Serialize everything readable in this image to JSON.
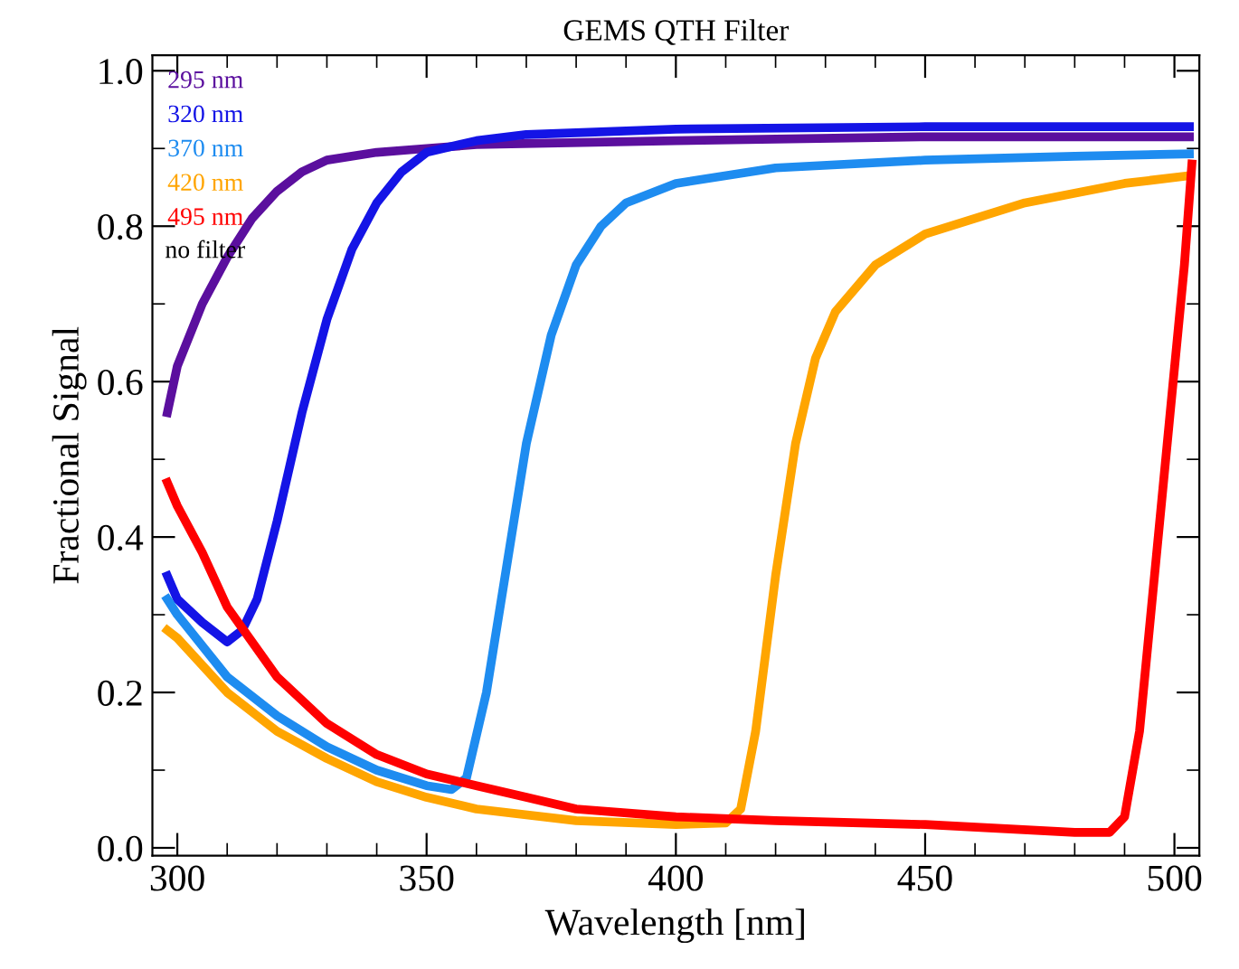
{
  "chart_data": {
    "type": "line",
    "title": "GEMS QTH Filter",
    "xlabel": "Wavelength [nm]",
    "ylabel": "Fractional Signal",
    "xlim": [
      295,
      505
    ],
    "ylim": [
      -0.01,
      1.02
    ],
    "xticks": [
      300,
      350,
      400,
      450,
      500
    ],
    "yticks": [
      {
        "value": 0,
        "label": "0.0"
      },
      0.2,
      0.4,
      0.6,
      0.8,
      {
        "value": 1,
        "label": "1.0"
      }
    ],
    "grid": false,
    "legend": "top left",
    "marker": "none",
    "line_style": "solid",
    "annotations": [
      "no filter"
    ],
    "series": [
      {
        "name": "295 nm",
        "color": "#5b0f9e",
        "x": [
          298,
          300,
          305,
          310,
          315,
          320,
          325,
          330,
          340,
          350,
          360,
          400,
          450,
          503
        ],
        "values": [
          0.56,
          0.62,
          0.7,
          0.76,
          0.81,
          0.845,
          0.87,
          0.885,
          0.895,
          0.9,
          0.905,
          0.91,
          0.915,
          0.915
        ]
      },
      {
        "name": "320 nm",
        "color": "#1414e6",
        "x": [
          298,
          300,
          305,
          310,
          313,
          316,
          320,
          325,
          330,
          335,
          340,
          345,
          350,
          360,
          370,
          400,
          450,
          503
        ],
        "values": [
          0.35,
          0.32,
          0.29,
          0.265,
          0.28,
          0.32,
          0.42,
          0.56,
          0.68,
          0.77,
          0.83,
          0.87,
          0.895,
          0.91,
          0.918,
          0.925,
          0.928,
          0.928
        ]
      },
      {
        "name": "370 nm",
        "color": "#1e8cf0",
        "x": [
          298,
          300,
          310,
          320,
          330,
          340,
          350,
          355,
          358,
          362,
          366,
          370,
          375,
          380,
          385,
          390,
          400,
          420,
          450,
          480,
          503
        ],
        "values": [
          0.32,
          0.3,
          0.22,
          0.17,
          0.13,
          0.1,
          0.08,
          0.075,
          0.09,
          0.2,
          0.36,
          0.52,
          0.66,
          0.75,
          0.8,
          0.83,
          0.855,
          0.875,
          0.885,
          0.89,
          0.893
        ]
      },
      {
        "name": "420 nm",
        "color": "#ffa500",
        "x": [
          298,
          300,
          310,
          320,
          330,
          340,
          350,
          360,
          380,
          400,
          410,
          413,
          416,
          420,
          424,
          428,
          432,
          440,
          450,
          470,
          490,
          503
        ],
        "values": [
          0.28,
          0.27,
          0.2,
          0.15,
          0.115,
          0.085,
          0.065,
          0.05,
          0.035,
          0.03,
          0.032,
          0.05,
          0.15,
          0.35,
          0.52,
          0.63,
          0.69,
          0.75,
          0.79,
          0.83,
          0.855,
          0.865
        ]
      },
      {
        "name": "495 nm",
        "color": "#ff0000",
        "x": [
          298,
          300,
          305,
          310,
          320,
          330,
          340,
          350,
          360,
          370,
          380,
          400,
          420,
          450,
          480,
          487,
          490,
          493,
          496,
          499,
          502,
          503.5
        ],
        "values": [
          0.47,
          0.44,
          0.38,
          0.31,
          0.22,
          0.16,
          0.12,
          0.095,
          0.08,
          0.065,
          0.05,
          0.04,
          0.035,
          0.03,
          0.02,
          0.02,
          0.04,
          0.15,
          0.35,
          0.55,
          0.75,
          0.88
        ]
      }
    ]
  }
}
